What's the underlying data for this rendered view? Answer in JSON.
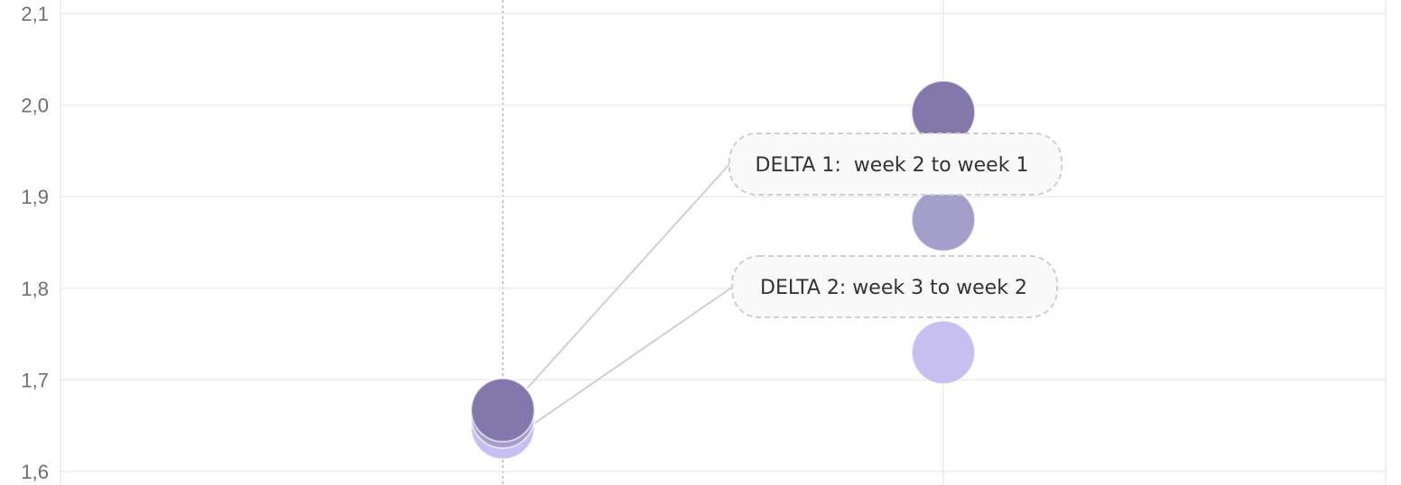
{
  "chart_data": {
    "type": "scatter",
    "title": "",
    "xlabel": "",
    "ylabel": "",
    "ylim": [
      1.6,
      2.1
    ],
    "y_ticks": [
      "1,6",
      "1,7",
      "1,8",
      "1,9",
      "2,0",
      "2,1"
    ],
    "grid": true,
    "series": [
      {
        "color": "#8377ab",
        "points": [
          {
            "x": 1,
            "y": 1.667
          },
          {
            "x": 2,
            "y": 1.992
          }
        ]
      },
      {
        "color": "#a49fca",
        "points": [
          {
            "x": 1,
            "y": 1.66
          },
          {
            "x": 2,
            "y": 1.875
          }
        ]
      },
      {
        "color": "#c6bff0",
        "points": [
          {
            "x": 1,
            "y": 1.648
          },
          {
            "x": 2,
            "y": 1.73
          }
        ]
      }
    ],
    "annotations": [
      {
        "text": "DELTA 1:  week 2 to week 1",
        "anchor_x": 1,
        "anchor_y": 1.685
      },
      {
        "text": "DELTA 2: week 3 to week 2",
        "anchor_x": 1,
        "anchor_y": 1.655
      }
    ]
  }
}
